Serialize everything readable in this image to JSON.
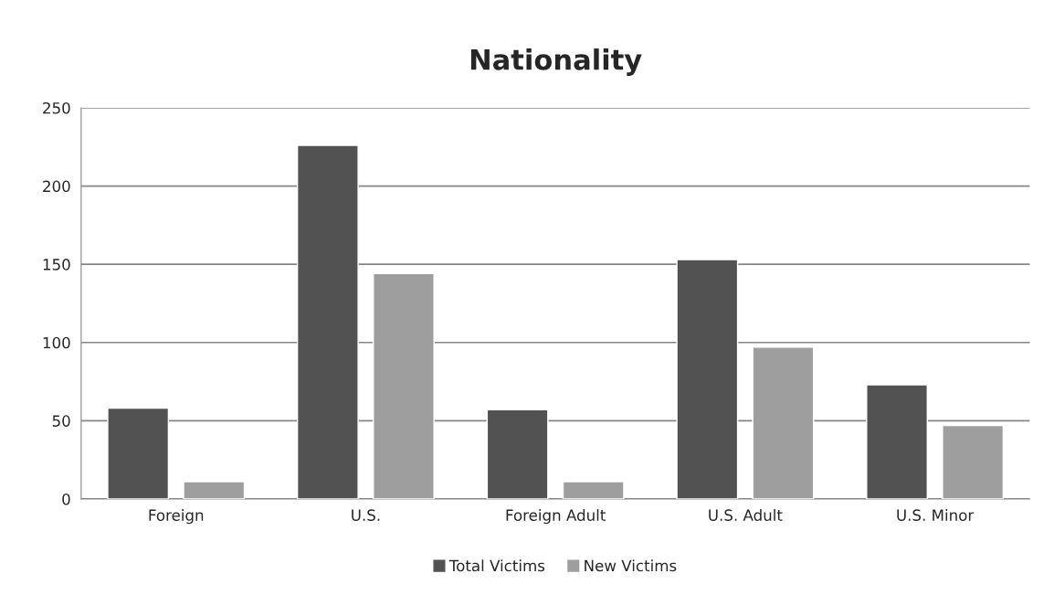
{
  "chart_data": {
    "type": "bar",
    "title": "Nationality",
    "categories": [
      "Foreign",
      "U.S.",
      "Foreign Adult",
      "U.S. Adult",
      "U.S. Minor"
    ],
    "series": [
      {
        "name": "Total Victims",
        "color": "#525252",
        "values": [
          58,
          226,
          57,
          153,
          73
        ]
      },
      {
        "name": "New Victims",
        "color": "#9e9e9e",
        "values": [
          11,
          144,
          11,
          97,
          47
        ]
      }
    ],
    "ylim": [
      0,
      250
    ],
    "yticks": [
      0,
      50,
      100,
      150,
      200,
      250
    ],
    "grid": "y",
    "legend": "bottom"
  }
}
